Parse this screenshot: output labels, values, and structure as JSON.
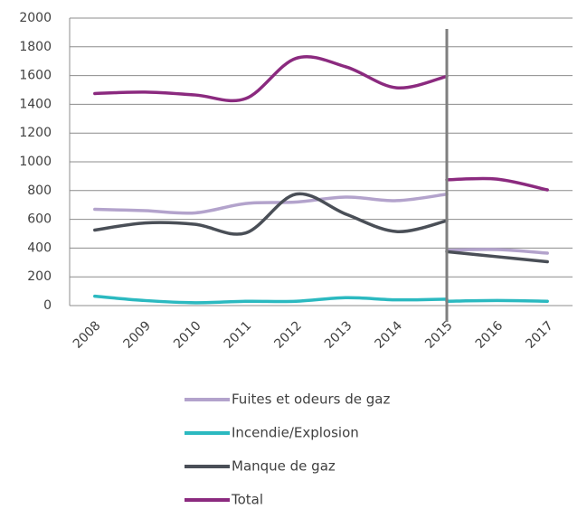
{
  "chart_data": {
    "type": "line",
    "x": [
      2008,
      2009,
      2010,
      2011,
      2012,
      2013,
      2014,
      2015,
      2015,
      2015,
      2016,
      2017
    ],
    "series": [
      {
        "name": "Fuites et odeurs de gaz",
        "color": "#b3a3cc",
        "values": [
          670,
          660,
          645,
          710,
          720,
          755,
          730,
          775,
          null,
          385,
          390,
          365
        ]
      },
      {
        "name": "Incendie/Explosion",
        "color": "#2bb9c0",
        "values": [
          65,
          35,
          20,
          30,
          30,
          55,
          40,
          45,
          null,
          30,
          35,
          30
        ]
      },
      {
        "name": "Manque de gaz",
        "color": "#4a4f57",
        "values": [
          525,
          575,
          565,
          505,
          775,
          635,
          515,
          590,
          null,
          375,
          340,
          305
        ]
      },
      {
        "name": "Total",
        "color": "#8b2a7f",
        "values": [
          1475,
          1485,
          1465,
          1440,
          1720,
          1660,
          1515,
          1595,
          null,
          875,
          880,
          805
        ]
      }
    ],
    "xlim": [
      2007.5,
      2017.5
    ],
    "xticks": [
      2008,
      2009,
      2010,
      2011,
      2012,
      2013,
      2014,
      2015,
      2016,
      2017
    ],
    "ylim": [
      0,
      2000
    ],
    "yticks": [
      0,
      200,
      400,
      600,
      800,
      1000,
      1200,
      1400,
      1600,
      1800,
      2000
    ],
    "grid": true,
    "vline": 2015,
    "legend": "bottom"
  }
}
